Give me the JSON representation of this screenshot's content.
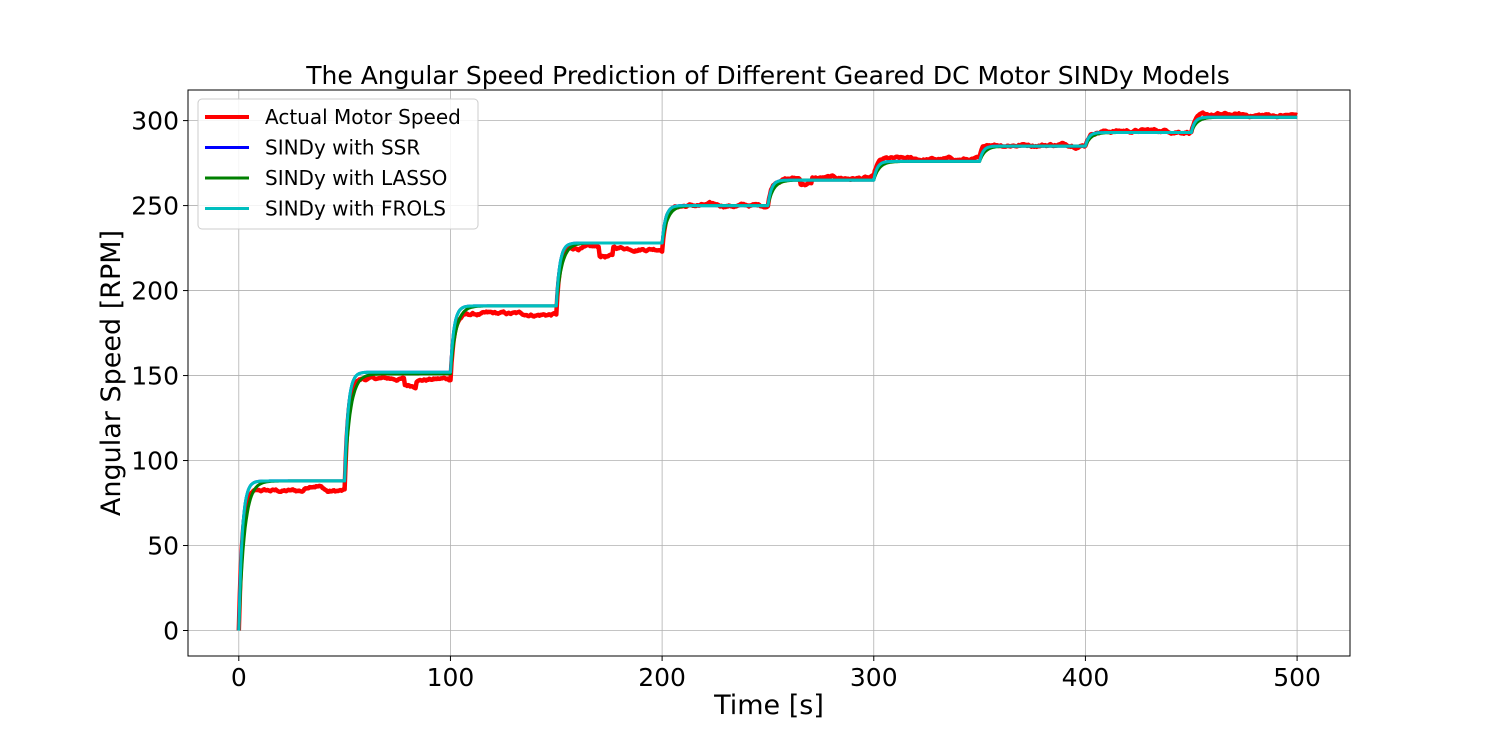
{
  "chart_data": {
    "type": "line",
    "title": "The Angular Speed Prediction of Different Geared DC Motor SINDy Models",
    "xlabel": "Time [s]",
    "ylabel": "Angular Speed [RPM]",
    "xlim": [
      -24,
      525
    ],
    "ylim": [
      -15,
      318
    ],
    "xticks": [
      0,
      100,
      200,
      300,
      400,
      500
    ],
    "yticks": [
      0,
      50,
      100,
      150,
      200,
      250,
      300
    ],
    "grid": true,
    "legend_position": "top-left",
    "step_times": [
      0,
      50,
      100,
      150,
      200,
      250,
      300,
      350,
      400,
      450
    ],
    "series": [
      {
        "name": "Actual Motor Speed",
        "color": "#ff0000",
        "steady_levels": [
          82,
          148,
          186,
          225,
          250,
          266,
          277,
          286,
          294,
          303
        ]
      },
      {
        "name": "SINDy with SSR",
        "color": "#0000ff",
        "steady_levels": [
          88,
          152,
          191,
          228,
          250,
          265,
          276,
          285,
          293,
          302
        ]
      },
      {
        "name": "SINDy with LASSO",
        "color": "#008000",
        "steady_levels": [
          88,
          151,
          191,
          228,
          250,
          265,
          276,
          285,
          293,
          302
        ]
      },
      {
        "name": "SINDy with FROLS",
        "color": "#00bfbf",
        "steady_levels": [
          88,
          152,
          191,
          228,
          250,
          265,
          276,
          285,
          293,
          302
        ]
      }
    ]
  }
}
